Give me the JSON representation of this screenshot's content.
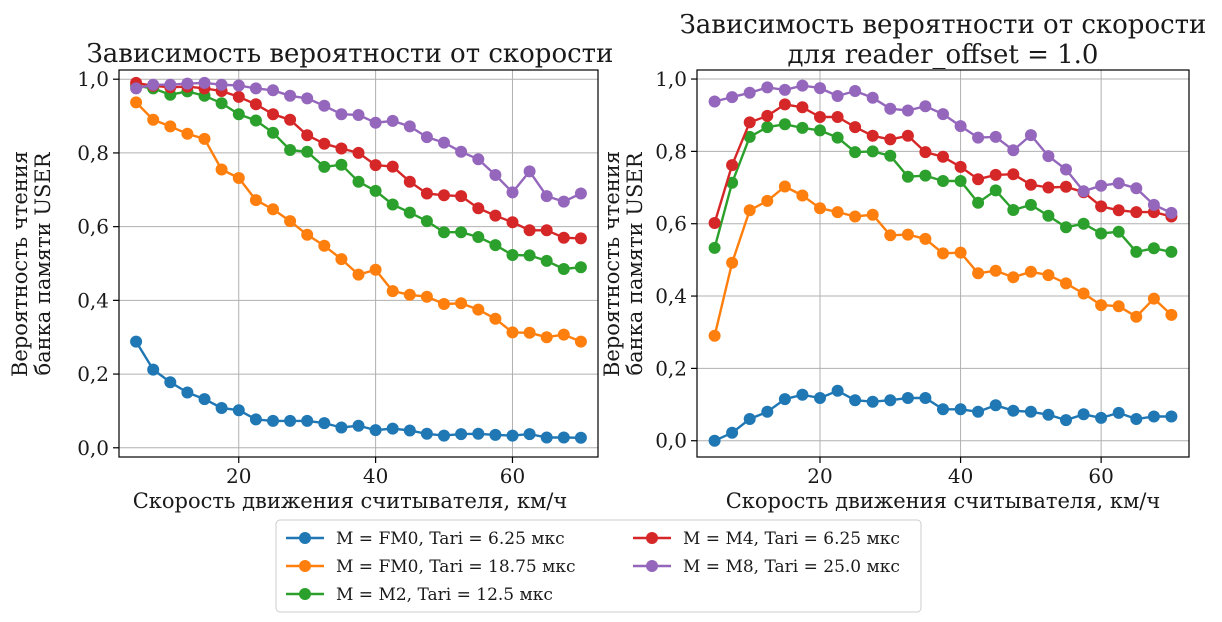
{
  "chart_data": [
    {
      "type": "line",
      "title": "Зависимость вероятности от скорости",
      "xlabel": "Скорость движения считывателя, км/ч",
      "ylabel": [
        "Вероятность чтения",
        "банка памяти USER"
      ],
      "xlim": [
        2.5,
        72.5
      ],
      "ylim": [
        -0.025,
        1.025
      ],
      "xticks": [
        20,
        40,
        60
      ],
      "xtick_labels": [
        "20",
        "40",
        "60"
      ],
      "yticks": [
        0,
        0.2,
        0.4,
        0.6,
        0.8,
        1.0
      ],
      "ytick_labels": [
        "0,0",
        "0,2",
        "0,4",
        "0,6",
        "0,8",
        "1,0"
      ],
      "grid": true,
      "x": [
        5,
        7.5,
        10,
        12.5,
        15,
        17.5,
        20,
        22.5,
        25,
        27.5,
        30,
        32.5,
        35,
        37.5,
        40,
        42.5,
        45,
        47.5,
        50,
        52.5,
        55,
        57.5,
        60,
        62.5,
        65,
        67.5,
        70
      ],
      "series": [
        {
          "name": "M = FM0, Tari = 6.25 мкс",
          "color": "#1f77b4",
          "values": [
            0.288,
            0.212,
            0.178,
            0.15,
            0.132,
            0.108,
            0.102,
            0.077,
            0.073,
            0.073,
            0.073,
            0.067,
            0.055,
            0.06,
            0.048,
            0.052,
            0.047,
            0.038,
            0.033,
            0.037,
            0.038,
            0.035,
            0.033,
            0.037,
            0.028,
            0.028,
            0.027
          ]
        },
        {
          "name": "M = FM0, Tari = 18.75 мкс",
          "color": "#ff7f0e",
          "values": [
            0.937,
            0.89,
            0.872,
            0.852,
            0.838,
            0.755,
            0.732,
            0.672,
            0.647,
            0.615,
            0.578,
            0.548,
            0.512,
            0.47,
            0.483,
            0.425,
            0.415,
            0.41,
            0.39,
            0.392,
            0.375,
            0.35,
            0.313,
            0.312,
            0.3,
            0.307,
            0.288
          ]
        },
        {
          "name": "M = M2, Tari = 12.5 мкс",
          "color": "#2ca02c",
          "values": [
            0.982,
            0.975,
            0.958,
            0.967,
            0.955,
            0.935,
            0.905,
            0.888,
            0.855,
            0.808,
            0.803,
            0.762,
            0.768,
            0.722,
            0.697,
            0.66,
            0.638,
            0.615,
            0.585,
            0.585,
            0.572,
            0.55,
            0.523,
            0.522,
            0.507,
            0.485,
            0.49
          ]
        },
        {
          "name": "M = M4, Tari = 6.25 мкс",
          "color": "#d62728",
          "values": [
            0.99,
            0.982,
            0.978,
            0.98,
            0.975,
            0.968,
            0.952,
            0.932,
            0.905,
            0.89,
            0.848,
            0.825,
            0.812,
            0.8,
            0.767,
            0.763,
            0.722,
            0.69,
            0.685,
            0.683,
            0.65,
            0.63,
            0.612,
            0.59,
            0.59,
            0.57,
            0.568
          ]
        },
        {
          "name": "M = M8, Tari = 25.0 мкс",
          "color": "#9467bd",
          "values": [
            0.975,
            0.985,
            0.985,
            0.988,
            0.99,
            0.985,
            0.983,
            0.975,
            0.97,
            0.955,
            0.948,
            0.928,
            0.905,
            0.903,
            0.882,
            0.887,
            0.872,
            0.843,
            0.828,
            0.803,
            0.783,
            0.74,
            0.693,
            0.75,
            0.683,
            0.668,
            0.69
          ]
        }
      ]
    },
    {
      "type": "line",
      "title": "Зависимость вероятности от скорости",
      "subtitle": "для reader_offset = 1.0",
      "xlabel": "Скорость движения считывателя, км/ч",
      "ylabel": [
        "Вероятность чтения",
        "банка памяти USER"
      ],
      "xlim": [
        2.5,
        72.5
      ],
      "ylim": [
        -0.045,
        1.025
      ],
      "xticks": [
        20,
        40,
        60
      ],
      "xtick_labels": [
        "20",
        "40",
        "60"
      ],
      "yticks": [
        0,
        0.2,
        0.4,
        0.6,
        0.8,
        1.0
      ],
      "ytick_labels": [
        "0,0",
        "0,2",
        "0,4",
        "0,6",
        "0,8",
        "1,0"
      ],
      "grid": true,
      "x": [
        5,
        7.5,
        10,
        12.5,
        15,
        17.5,
        20,
        22.5,
        25,
        27.5,
        30,
        32.5,
        35,
        37.5,
        40,
        42.5,
        45,
        47.5,
        50,
        52.5,
        55,
        57.5,
        60,
        62.5,
        65,
        67.5,
        70
      ],
      "series": [
        {
          "name": "M = FM0, Tari = 6.25 мкс",
          "color": "#1f77b4",
          "values": [
            0.0,
            0.022,
            0.06,
            0.08,
            0.115,
            0.127,
            0.118,
            0.138,
            0.112,
            0.108,
            0.112,
            0.118,
            0.118,
            0.087,
            0.087,
            0.08,
            0.098,
            0.083,
            0.08,
            0.072,
            0.057,
            0.073,
            0.063,
            0.077,
            0.06,
            0.067,
            0.067
          ]
        },
        {
          "name": "M = FM0, Tari = 18.75 мкс",
          "color": "#ff7f0e",
          "values": [
            0.29,
            0.492,
            0.637,
            0.663,
            0.703,
            0.678,
            0.643,
            0.632,
            0.62,
            0.625,
            0.568,
            0.57,
            0.558,
            0.518,
            0.52,
            0.463,
            0.47,
            0.452,
            0.467,
            0.458,
            0.435,
            0.407,
            0.375,
            0.372,
            0.343,
            0.393,
            0.348
          ]
        },
        {
          "name": "M = M2, Tari = 12.5 мкс",
          "color": "#2ca02c",
          "values": [
            0.533,
            0.713,
            0.84,
            0.867,
            0.875,
            0.865,
            0.858,
            0.838,
            0.798,
            0.8,
            0.788,
            0.73,
            0.733,
            0.718,
            0.718,
            0.658,
            0.692,
            0.638,
            0.652,
            0.622,
            0.59,
            0.6,
            0.573,
            0.578,
            0.522,
            0.532,
            0.522
          ]
        },
        {
          "name": "M = M4, Tari = 6.25 мкс",
          "color": "#d62728",
          "values": [
            0.602,
            0.762,
            0.88,
            0.898,
            0.93,
            0.922,
            0.895,
            0.895,
            0.867,
            0.843,
            0.833,
            0.843,
            0.798,
            0.785,
            0.757,
            0.723,
            0.735,
            0.737,
            0.708,
            0.7,
            0.702,
            0.687,
            0.648,
            0.637,
            0.632,
            0.632,
            0.62
          ]
        },
        {
          "name": "M = M8, Tari = 25.0 мкс",
          "color": "#9467bd",
          "values": [
            0.938,
            0.95,
            0.962,
            0.977,
            0.97,
            0.982,
            0.975,
            0.953,
            0.967,
            0.948,
            0.918,
            0.913,
            0.925,
            0.903,
            0.87,
            0.838,
            0.84,
            0.803,
            0.845,
            0.787,
            0.75,
            0.69,
            0.705,
            0.712,
            0.698,
            0.652,
            0.63
          ]
        }
      ]
    }
  ],
  "legend": {
    "placement": "bottom-center",
    "items": [
      {
        "label": "M = FM0, Tari = 6.25 мкс",
        "color": "#1f77b4"
      },
      {
        "label": "M = FM0, Tari = 18.75 мкс",
        "color": "#ff7f0e"
      },
      {
        "label": "M = M2, Tari = 12.5 мкс",
        "color": "#2ca02c"
      },
      {
        "label": "M = M4, Tari = 6.25 мкс",
        "color": "#d62728"
      },
      {
        "label": "M = M8, Tari = 25.0 мкс",
        "color": "#9467bd"
      }
    ]
  }
}
